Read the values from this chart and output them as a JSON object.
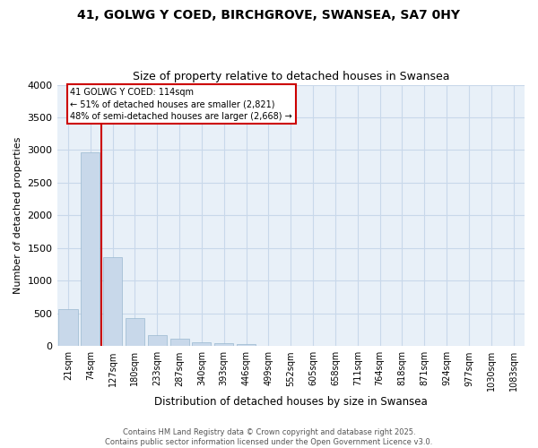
{
  "title": "41, GOLWG Y COED, BIRCHGROVE, SWANSEA, SA7 0HY",
  "subtitle": "Size of property relative to detached houses in Swansea",
  "xlabel": "Distribution of detached houses by size in Swansea",
  "ylabel": "Number of detached properties",
  "footer_line1": "Contains HM Land Registry data © Crown copyright and database right 2025.",
  "footer_line2": "Contains public sector information licensed under the Open Government Licence v3.0.",
  "bar_color": "#c8d8ea",
  "bar_edge_color": "#9ab8d0",
  "grid_color": "#c8d8ea",
  "background_color": "#e8f0f8",
  "vline_color": "#cc0000",
  "annotation_text": "41 GOLWG Y COED: 114sqm\n← 51% of detached houses are smaller (2,821)\n48% of semi-detached houses are larger (2,668) →",
  "vline_pos": 1.5,
  "categories": [
    "21sqm",
    "74sqm",
    "127sqm",
    "180sqm",
    "233sqm",
    "287sqm",
    "340sqm",
    "393sqm",
    "446sqm",
    "499sqm",
    "552sqm",
    "605sqm",
    "658sqm",
    "711sqm",
    "764sqm",
    "818sqm",
    "871sqm",
    "924sqm",
    "977sqm",
    "1030sqm",
    "1083sqm"
  ],
  "values": [
    560,
    2960,
    1360,
    430,
    175,
    110,
    60,
    40,
    35,
    0,
    0,
    0,
    0,
    0,
    0,
    0,
    0,
    0,
    0,
    0,
    0
  ],
  "ylim": [
    0,
    4000
  ],
  "yticks": [
    0,
    500,
    1000,
    1500,
    2000,
    2500,
    3000,
    3500,
    4000
  ]
}
